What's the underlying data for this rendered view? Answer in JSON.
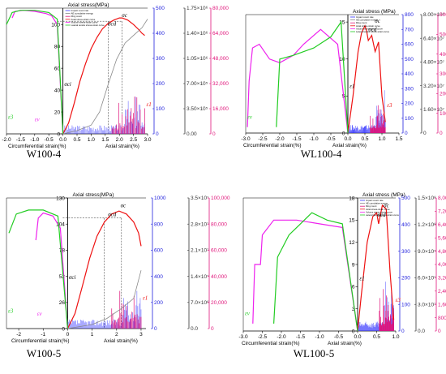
{
  "figure": {
    "colors": {
      "axis": "#000000",
      "ae_rate": "#3333ff",
      "ae_energy": "#888888",
      "ring_count": "#e0147a",
      "axial": "#ee1111",
      "volume": "#ee22ee",
      "lateral": "#22cc22",
      "magenta_axis": "#e0147a",
      "blue_axis": "#2222dd"
    }
  },
  "chart_data": [
    {
      "panel": "W100-4",
      "type": "line",
      "caption": "W100-4",
      "title": "Axial stress(MPa)",
      "xlabel_left": "Circumferential strain(%)",
      "xlabel_right": "Axial strain(%)",
      "x_ticks": [
        "-2.0",
        "-1.5",
        "-1.0",
        "-0.5",
        "0.0",
        "0.5",
        "1.0",
        "1.5",
        "2.0",
        "2.5",
        "3.0"
      ],
      "xlim": [
        -2.0,
        3.0
      ],
      "y_ticks": [
        "0",
        "20",
        "40",
        "60",
        "80",
        "100"
      ],
      "ylim": [
        0,
        115
      ],
      "blue_ticks": [
        "0",
        "100",
        "200",
        "300",
        "400",
        "500"
      ],
      "grey_ticks": [
        "0.00",
        "3.50×10⁵",
        "7.00×10⁵",
        "1.05×10⁶",
        "1.40×10⁶",
        "1.75×10⁶"
      ],
      "pink_ticks": [
        "0",
        "16,000",
        "32,000",
        "48,000",
        "64,000",
        "80,000"
      ],
      "legend": [
        "Impact count rate",
        "AE cumulative energy",
        "Ring count",
        "Axial stress-strain curve",
        "Volume stress-strain curve",
        "Lateral tensile stress-strain curve"
      ],
      "annotations": [
        "σc",
        "σcd",
        "σci",
        "ε1",
        "ε3",
        "εv"
      ],
      "ref_lines": {
        "sigma_c": 103,
        "x": [
          1.6,
          2.1
        ]
      },
      "series": [
        {
          "key": "axial",
          "x": [
            0,
            0.2,
            0.4,
            0.6,
            0.8,
            1.0,
            1.2,
            1.4,
            1.6,
            1.8,
            2.0,
            2.1,
            2.3,
            2.5,
            2.7,
            2.8,
            2.9
          ],
          "y": [
            0,
            10,
            28,
            48,
            64,
            78,
            88,
            96,
            101,
            104,
            106,
            106,
            104,
            100,
            95,
            92,
            90
          ]
        },
        {
          "key": "volume",
          "x": [
            0,
            -0.2,
            -0.4,
            -0.6,
            -1.0,
            -1.4,
            -1.7,
            -1.8
          ],
          "y": [
            0,
            100,
            108,
            110,
            112,
            113,
            112,
            106
          ]
        },
        {
          "key": "lateral",
          "x": [
            0,
            -0.2,
            -0.5,
            -1.0,
            -1.5,
            -1.8,
            -2.0
          ],
          "y": [
            0,
            105,
            111,
            113,
            113,
            111,
            100
          ]
        },
        {
          "key": "ae_energy",
          "x": [
            0,
            0.5,
            1.0,
            1.3,
            1.6,
            1.9,
            2.2,
            2.5,
            2.8,
            3.0
          ],
          "y": [
            0,
            3,
            8,
            20,
            45,
            68,
            83,
            90,
            97,
            105
          ]
        }
      ]
    },
    {
      "panel": "WL100-4",
      "type": "line",
      "caption": "WL100-4",
      "title": "Axial stress (MPa)",
      "xlabel_left": "Circumferential strain(%)",
      "xlabel_right": "Axial strain(%)",
      "x_ticks": [
        "-3.0",
        "-2.5",
        "-2.0",
        "-1.5",
        "-1.0",
        "-0.5",
        "0.0",
        "0.5",
        "1.0",
        "1.5"
      ],
      "xlim": [
        -3.0,
        1.5
      ],
      "y_ticks": [
        "0",
        "5",
        "10",
        "15"
      ],
      "ylim": [
        0,
        16
      ],
      "blue_ticks": [
        "0",
        "100",
        "200",
        "300",
        "400",
        "500",
        "600",
        "700",
        "800"
      ],
      "grey_ticks": [
        "0",
        "1.60×10⁷",
        "3.20×10⁷",
        "4.80×10⁷",
        "6.40×10⁷",
        "8.00×10⁷"
      ],
      "pink_ticks": [
        "0",
        "100",
        "200",
        "300",
        "400",
        "500",
        "600"
      ],
      "legend": [
        "Impact count rate",
        "AE cumulative energy",
        "Ring count",
        "Axial stress-strain curve",
        "Volume stress-strain curve",
        "Lateral tensile stress-strain curve"
      ],
      "annotations": [
        "σc",
        "σcd",
        "ε1",
        "ε3",
        "εv"
      ],
      "series": [
        {
          "key": "axial",
          "x": [
            0,
            0.15,
            0.3,
            0.4,
            0.5,
            0.55,
            0.6,
            0.7,
            0.8,
            0.9,
            1.0,
            1.1
          ],
          "y": [
            0,
            5,
            11,
            13.5,
            14.5,
            13.8,
            12.5,
            13.2,
            11,
            12.3,
            5,
            1.5
          ]
        },
        {
          "key": "volume",
          "x": [
            0,
            -0.3,
            -0.8,
            -1.3,
            -1.6,
            -2.0,
            -2.3,
            -2.6,
            -2.8,
            -2.9,
            -2.95
          ],
          "y": [
            0,
            12,
            14,
            12,
            10.5,
            9.5,
            10,
            12,
            11.5,
            7,
            0.8
          ]
        },
        {
          "key": "lateral",
          "x": [
            0,
            -0.2,
            -0.5,
            -1.0,
            -1.6,
            -2.0,
            -2.1
          ],
          "y": [
            0,
            15,
            13,
            11.5,
            10.5,
            10,
            0.8
          ]
        }
      ]
    },
    {
      "panel": "W100-5",
      "type": "line",
      "caption": "W100-5",
      "title": "Axial stress(MPa)",
      "xlabel_left": "Circumferential strain(%)",
      "xlabel_right": "Axial strain(%)",
      "x_ticks": [
        "-2",
        "-1",
        "0",
        "1",
        "2",
        "3"
      ],
      "xlim": [
        -2.5,
        3.2
      ],
      "y_ticks": [
        "0",
        "26",
        "52",
        "78",
        "104",
        "130"
      ],
      "ylim": [
        0,
        130
      ],
      "blue_ticks": [
        "0",
        "200",
        "400",
        "600",
        "800",
        "1000"
      ],
      "grey_ticks": [
        "0.0",
        "7.0×10⁶",
        "1.4×10⁷",
        "2.1×10⁷",
        "2.8×10⁷",
        "3.5×10⁷"
      ],
      "pink_ticks": [
        "0",
        "20,000",
        "40,000",
        "60,000",
        "80,000",
        "100,000"
      ],
      "annotations": [
        "σc",
        "σcd",
        "σci",
        "ε1",
        "ε3",
        "εv"
      ],
      "ref_lines": {
        "sigma_c": 110,
        "x": [
          1.5,
          2.2
        ]
      },
      "series": [
        {
          "key": "axial",
          "x": [
            0,
            0.3,
            0.6,
            0.9,
            1.2,
            1.5,
            1.8,
            2.1,
            2.4,
            2.7,
            2.9,
            3.0
          ],
          "y": [
            0,
            15,
            42,
            70,
            92,
            106,
            114,
            117,
            114,
            106,
            95,
            82
          ]
        },
        {
          "key": "volume",
          "x": [
            0,
            -0.3,
            -0.6,
            -1.0,
            -1.2,
            -1.3
          ],
          "y": [
            0,
            100,
            112,
            115,
            110,
            88
          ]
        },
        {
          "key": "lateral",
          "x": [
            0,
            -0.4,
            -1.0,
            -1.6,
            -2.1,
            -2.4
          ],
          "y": [
            0,
            112,
            118,
            118,
            114,
            95
          ]
        },
        {
          "key": "ae_energy",
          "x": [
            0,
            1.0,
            1.6,
            2.2,
            2.7,
            3.0
          ],
          "y": [
            0,
            4,
            10,
            20,
            30,
            58
          ]
        }
      ]
    },
    {
      "panel": "WL100-5",
      "type": "line",
      "caption": "WL100-5",
      "title": "Axial stress (MPa)",
      "xlabel_left": "Circumferential strain(%)",
      "xlabel_right": "Axial strain(%)",
      "x_ticks": [
        "-3.0",
        "-2.5",
        "-2.0",
        "-1.5",
        "-1.0",
        "-0.5",
        "0.0",
        "0.5",
        "1.0"
      ],
      "xlim": [
        -3.0,
        1.0
      ],
      "y_ticks": [
        "0",
        "3",
        "6",
        "9",
        "12",
        "15",
        "18"
      ],
      "ylim": [
        0,
        18
      ],
      "blue_ticks": [
        "0",
        "100",
        "200",
        "300",
        "400",
        "500"
      ],
      "grey_ticks": [
        "0.0",
        "3.0×10⁷",
        "6.0×10⁷",
        "9.0×10⁷",
        "1.2×10⁸",
        "1.5×10⁸"
      ],
      "pink_ticks": [
        "0",
        "800",
        "1,600",
        "2,400",
        "3,200",
        "4,000",
        "4,800",
        "5,600",
        "6,400",
        "7,200",
        "8,000"
      ],
      "legend": [
        "Impact count rate",
        "AE cumulative energy",
        "Ring count",
        "Axial stress-strain curve",
        "Volume stress-strain curve",
        "Lateral tensile stress-strain curve"
      ],
      "annotations": [
        "σc",
        "σcd",
        "ε1",
        "ε3",
        "εv"
      ],
      "series": [
        {
          "key": "axial",
          "x": [
            0,
            0.1,
            0.25,
            0.4,
            0.5,
            0.55,
            0.65,
            0.75,
            0.85,
            0.95
          ],
          "y": [
            0,
            5,
            12,
            15.5,
            16,
            14.5,
            17,
            16.5,
            8,
            1.5
          ]
        },
        {
          "key": "volume",
          "x": [
            0,
            -0.4,
            -1.0,
            -1.6,
            -2.2,
            -2.5,
            -2.55,
            -2.7,
            -2.75
          ],
          "y": [
            0,
            14,
            14.5,
            15,
            15,
            13,
            9,
            9,
            1.0
          ]
        },
        {
          "key": "lateral",
          "x": [
            0,
            -0.4,
            -0.8,
            -1.2,
            -1.5,
            -1.8,
            -2.1,
            -2.2
          ],
          "y": [
            0,
            14.5,
            15,
            16,
            14.5,
            13,
            10,
            1.0
          ]
        }
      ]
    }
  ]
}
